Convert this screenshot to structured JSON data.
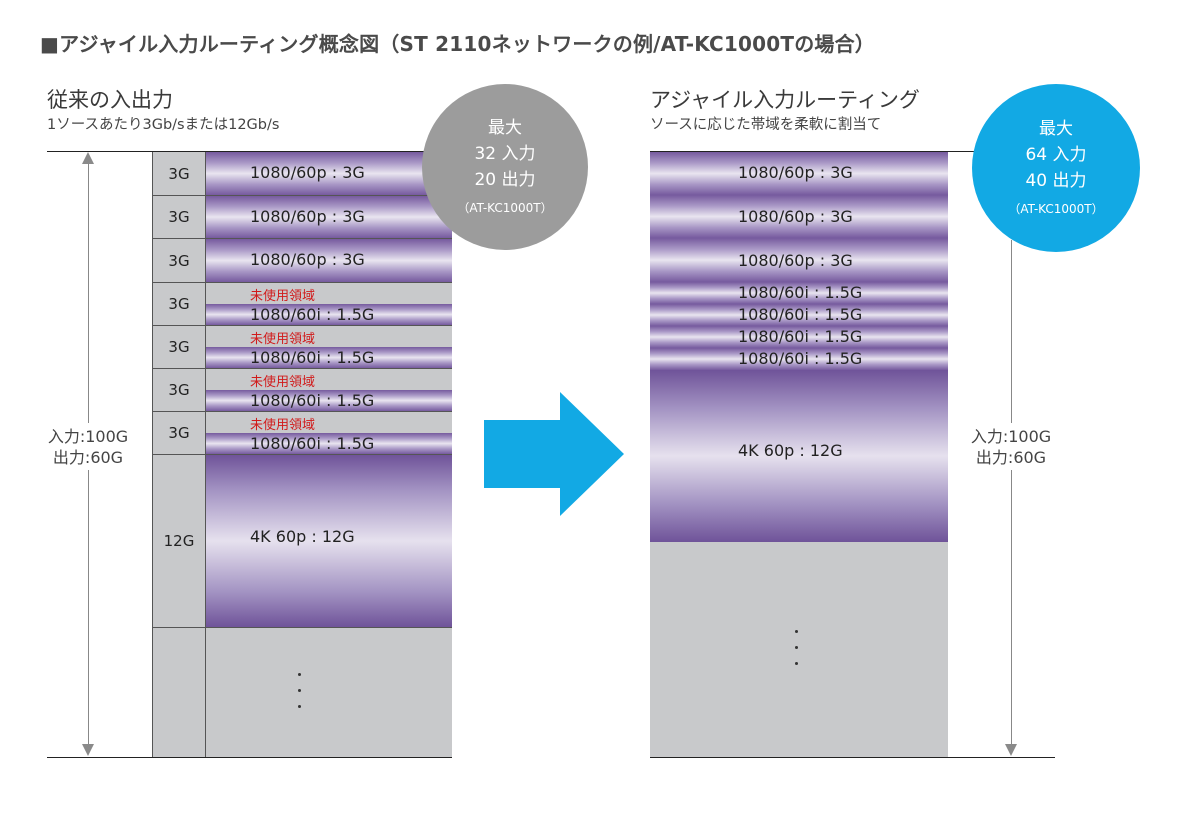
{
  "title": "■アジャイル入力ルーティング概念図（ST 2110ネットワークの例/AT-KC1000Tの場合）",
  "left": {
    "heading": "従来の入出力",
    "subheading": "1ソースあたり3Gb/sまたは12Gb/s",
    "badge": {
      "line1": "最大",
      "line2": "32 入力",
      "line3": "20 出力",
      "line4": "（AT-KC1000T）",
      "color": "#9c9c9c"
    },
    "capacity_line1": "入力:100G",
    "capacity_line2": "出力:60G",
    "rows": [
      {
        "label": "3G",
        "stream": "1080/60p : 3G"
      },
      {
        "label": "3G",
        "stream": "1080/60p : 3G"
      },
      {
        "label": "3G",
        "stream": "1080/60p : 3G"
      },
      {
        "label": "3G",
        "unused": "未使用領域",
        "stream": "1080/60i : 1.5G"
      },
      {
        "label": "3G",
        "unused": "未使用領域",
        "stream": "1080/60i : 1.5G"
      },
      {
        "label": "3G",
        "unused": "未使用領域",
        "stream": "1080/60i : 1.5G"
      },
      {
        "label": "3G",
        "unused": "未使用領域",
        "stream": "1080/60i : 1.5G"
      },
      {
        "label": "12G",
        "stream": "4K 60p : 12G"
      }
    ]
  },
  "right": {
    "heading": "アジャイル入力ルーティング",
    "subheading": "ソースに応じた帯域を柔軟に割当て",
    "badge": {
      "line1": "最大",
      "line2": "64 入力",
      "line3": "40 出力",
      "line4": "（AT-KC1000T）",
      "color": "#12a9e4"
    },
    "capacity_line1": "入力:100G",
    "capacity_line2": "出力:60G",
    "streams": [
      "1080/60p : 3G",
      "1080/60p : 3G",
      "1080/60p : 3G",
      "1080/60i : 1.5G",
      "1080/60i : 1.5G",
      "1080/60i : 1.5G",
      "1080/60i : 1.5G",
      "4K 60p : 12G"
    ]
  },
  "arrow": {
    "icon": "right-arrow-icon",
    "color": "#12a9e4"
  }
}
